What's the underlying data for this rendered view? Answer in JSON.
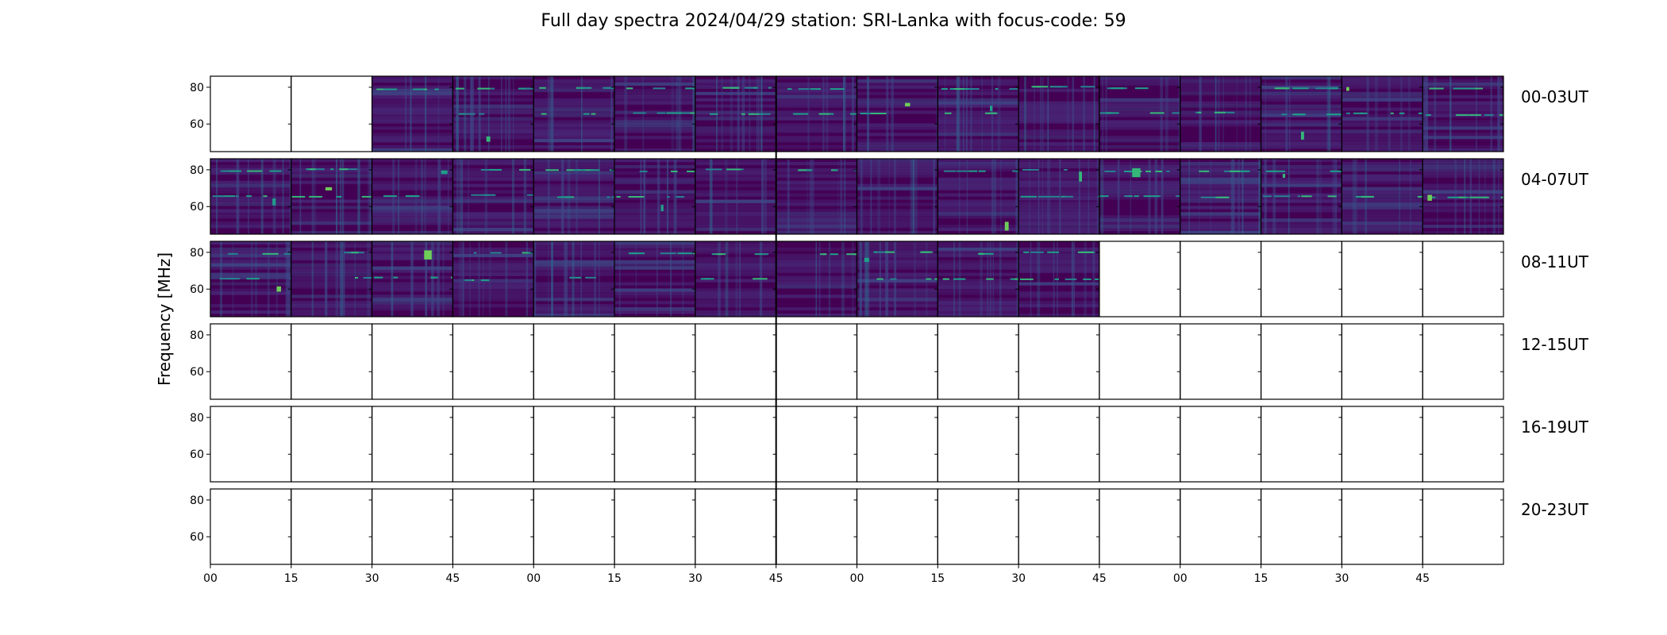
{
  "chart_data": {
    "type": "heatmap",
    "title": "Full day spectra 2024/04/29 station: SRI-Lanka with focus-code: 59",
    "ylabel": "Frequency [MHz]",
    "xlabel": "",
    "y_ticks": [
      "80",
      "60"
    ],
    "ylim": [
      45,
      86
    ],
    "x_tick_labels": [
      "00",
      "15",
      "30",
      "45",
      "00",
      "15",
      "30",
      "45",
      "00",
      "15",
      "30",
      "45",
      "00",
      "15",
      "30",
      "45"
    ],
    "panels_per_row": 16,
    "colormap": [
      "#440154",
      "#482878",
      "#3e4a89",
      "#31688e",
      "#26828e",
      "#1f9e89",
      "#35b779",
      "#6ece58",
      "#b5de2b",
      "#fde725"
    ],
    "grid": false,
    "rows": [
      {
        "label": "00-03UT",
        "has_data": [
          false,
          false,
          true,
          true,
          true,
          true,
          true,
          true,
          true,
          true,
          true,
          true,
          true,
          true,
          true,
          true
        ]
      },
      {
        "label": "04-07UT",
        "has_data": [
          true,
          true,
          true,
          true,
          true,
          true,
          true,
          true,
          true,
          true,
          true,
          true,
          true,
          true,
          true,
          true
        ]
      },
      {
        "label": "08-11UT",
        "has_data": [
          true,
          true,
          true,
          true,
          true,
          true,
          true,
          true,
          true,
          true,
          true,
          false,
          false,
          false,
          false,
          false
        ]
      },
      {
        "label": "12-15UT",
        "has_data": [
          false,
          false,
          false,
          false,
          false,
          false,
          false,
          false,
          false,
          false,
          false,
          false,
          false,
          false,
          false,
          false
        ]
      },
      {
        "label": "16-19UT",
        "has_data": [
          false,
          false,
          false,
          false,
          false,
          false,
          false,
          false,
          false,
          false,
          false,
          false,
          false,
          false,
          false,
          false
        ]
      },
      {
        "label": "20-23UT",
        "has_data": [
          false,
          false,
          false,
          false,
          false,
          false,
          false,
          false,
          false,
          false,
          false,
          false,
          false,
          false,
          false,
          false
        ]
      }
    ]
  }
}
